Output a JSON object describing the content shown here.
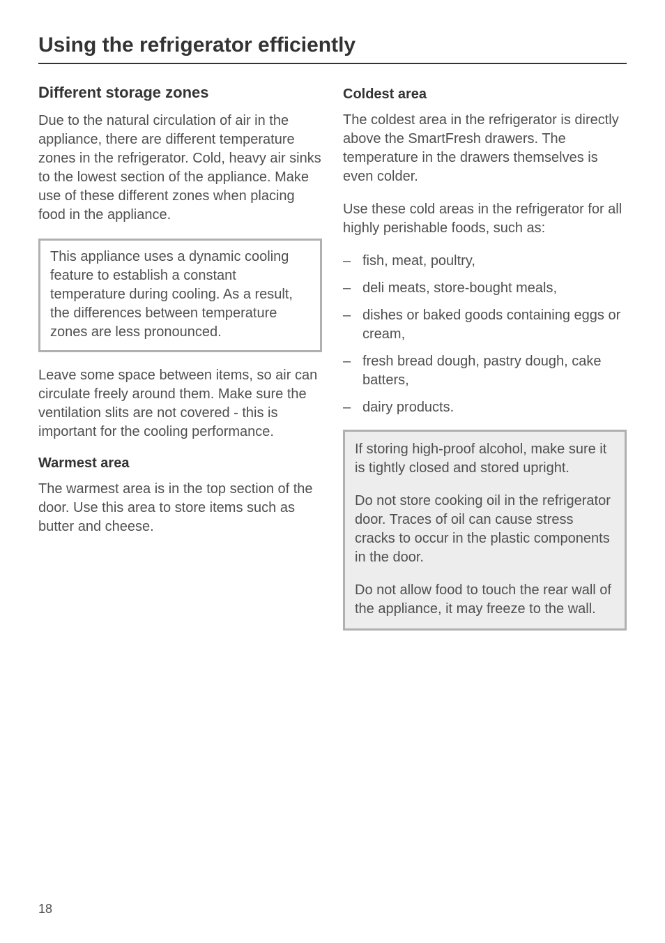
{
  "page": {
    "title": "Using the refrigerator efficiently",
    "number": "18"
  },
  "left": {
    "heading": "Different storage zones",
    "intro": "Due to the natural circulation of air in the appliance, there are different temperature zones in the refrigerator. Cold, heavy air sinks to the lowest section of the appliance. Make use of these different zones when placing food in the appliance.",
    "box1": "This appliance uses a dynamic cooling feature to establish a constant temperature during cooling. As a result, the differences between temperature zones are less pronounced.",
    "after_box": "Leave some space between items, so air can circulate freely around them. Make sure the ventilation slits are not covered - this is important for the cooling performance.",
    "warmest_heading": "Warmest area",
    "warmest_body": "The warmest area is in the top section of the door. Use this area to store items such as butter and cheese."
  },
  "right": {
    "coldest_heading": "Coldest area",
    "coldest_p1": "The coldest area in the refrigerator is directly above the SmartFresh drawers. The temperature in the drawers themselves is even colder.",
    "coldest_p2": "Use these cold areas in the refrigerator for all highly perishable foods, such as:",
    "list": [
      "fish, meat, poultry,",
      "deli meats, store-bought meals,",
      "dishes or baked goods containing eggs or cream,",
      "fresh bread dough, pastry dough, cake batters,",
      "dairy products."
    ],
    "box2_p1": "If storing high-proof alcohol, make sure it is tightly closed and stored upright.",
    "box2_p2": "Do not store cooking oil in the refrigerator door. Traces of oil can cause stress cracks to occur in the plastic components in the door.",
    "box2_p3": "Do not allow food to touch the rear wall of the appliance, it may freeze to the wall."
  }
}
